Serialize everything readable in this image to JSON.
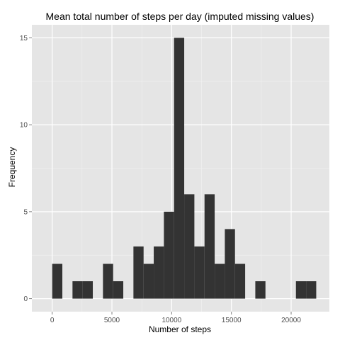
{
  "chart_data": {
    "type": "bar",
    "title": "Mean total number of steps per day (imputed missing values)",
    "xlabel": "Number of steps",
    "ylabel": "Frequency",
    "xlim": [
      -1700,
      23200
    ],
    "ylim": [
      -0.75,
      15.75
    ],
    "x_ticks": [
      0,
      5000,
      10000,
      15000,
      20000
    ],
    "x_tick_labels": [
      "0",
      "5000",
      "10000",
      "15000",
      "20000"
    ],
    "y_ticks": [
      0,
      5,
      10,
      15
    ],
    "y_tick_labels": [
      "0",
      "5",
      "10",
      "15"
    ],
    "bin_width": 850,
    "bins": [
      {
        "x0": 0,
        "x1": 850,
        "count": 2
      },
      {
        "x0": 850,
        "x1": 1700,
        "count": 0
      },
      {
        "x0": 1700,
        "x1": 2550,
        "count": 1
      },
      {
        "x0": 2550,
        "x1": 3400,
        "count": 1
      },
      {
        "x0": 3400,
        "x1": 4250,
        "count": 0
      },
      {
        "x0": 4250,
        "x1": 5100,
        "count": 2
      },
      {
        "x0": 5100,
        "x1": 5950,
        "count": 1
      },
      {
        "x0": 5950,
        "x1": 6800,
        "count": 0
      },
      {
        "x0": 6800,
        "x1": 7650,
        "count": 3
      },
      {
        "x0": 7650,
        "x1": 8500,
        "count": 2
      },
      {
        "x0": 8500,
        "x1": 9350,
        "count": 3
      },
      {
        "x0": 9350,
        "x1": 10200,
        "count": 5
      },
      {
        "x0": 10200,
        "x1": 11050,
        "count": 15
      },
      {
        "x0": 11050,
        "x1": 11900,
        "count": 6
      },
      {
        "x0": 11900,
        "x1": 12750,
        "count": 3
      },
      {
        "x0": 12750,
        "x1": 13600,
        "count": 6
      },
      {
        "x0": 13600,
        "x1": 14450,
        "count": 2
      },
      {
        "x0": 14450,
        "x1": 15300,
        "count": 4
      },
      {
        "x0": 15300,
        "x1": 16150,
        "count": 2
      },
      {
        "x0": 16150,
        "x1": 17000,
        "count": 0
      },
      {
        "x0": 17000,
        "x1": 17850,
        "count": 1
      },
      {
        "x0": 17850,
        "x1": 18700,
        "count": 0
      },
      {
        "x0": 18700,
        "x1": 19550,
        "count": 0
      },
      {
        "x0": 19550,
        "x1": 20400,
        "count": 0
      },
      {
        "x0": 20400,
        "x1": 21250,
        "count": 1
      },
      {
        "x0": 21250,
        "x1": 22100,
        "count": 1
      }
    ],
    "grid": true,
    "legend": "none",
    "colors": {
      "bar": "#333333",
      "panel": "#e5e5e5",
      "grid_major": "#ffffff",
      "grid_minor": "#f2f2f2",
      "tick_text": "#4d4d4d",
      "tick_mark": "#7f7f7f"
    }
  }
}
